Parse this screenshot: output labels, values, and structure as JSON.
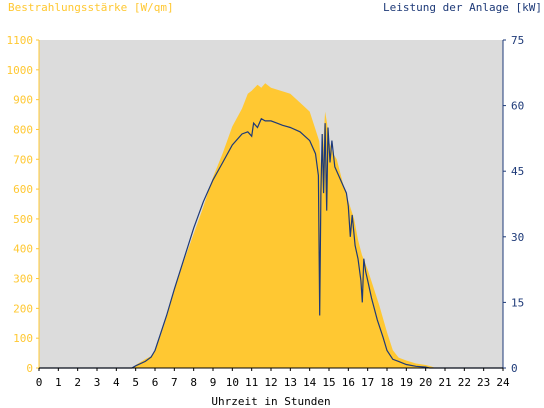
{
  "chart_data": {
    "type": "area",
    "title_left": "Bestrahlungsstärke [W/qm]",
    "title_right": "Leistung der Anlage [kW]",
    "xlabel": "Uhrzeit in Stunden",
    "xlim": [
      0,
      24
    ],
    "x_ticks": [
      "0",
      "1",
      "2",
      "3",
      "4",
      "5",
      "6",
      "7",
      "8",
      "9",
      "10",
      "11",
      "12",
      "13",
      "14",
      "15",
      "16",
      "17",
      "18",
      "19",
      "20",
      "21",
      "22",
      "23",
      "24"
    ],
    "y_left": {
      "lim": [
        0,
        1100
      ],
      "ticks": [
        "0",
        "100",
        "200",
        "300",
        "400",
        "500",
        "600",
        "700",
        "800",
        "900",
        "1000",
        "1100"
      ],
      "color": "#ffc832"
    },
    "y_right": {
      "lim": [
        0,
        75
      ],
      "ticks": [
        "0",
        "15",
        "30",
        "45",
        "60",
        "75"
      ],
      "color": "#1e3a78"
    },
    "plot_background": "#dcdcdc",
    "grid": false,
    "series": [
      {
        "axis": "left",
        "style": "area",
        "color": "#ffc832",
        "x": [
          0,
          4.9,
          5.0,
          5.5,
          5.8,
          6.0,
          6.3,
          6.6,
          7.0,
          7.5,
          8.0,
          8.5,
          9.0,
          9.5,
          10.0,
          10.5,
          10.8,
          11.0,
          11.3,
          11.5,
          11.7,
          12.0,
          12.5,
          13.0,
          13.5,
          14.0,
          14.3,
          14.5,
          14.6,
          14.7,
          14.8,
          14.9,
          15.0,
          15.2,
          15.4,
          15.6,
          15.8,
          16.0,
          16.3,
          16.5,
          16.7,
          17.0,
          17.3,
          17.6,
          18.0,
          18.3,
          18.6,
          19.0,
          19.5,
          20.0,
          20.3,
          20.5,
          24
        ],
        "y": [
          0,
          0,
          10,
          30,
          40,
          60,
          110,
          170,
          260,
          360,
          450,
          540,
          640,
          720,
          810,
          870,
          920,
          930,
          950,
          940,
          955,
          940,
          930,
          920,
          890,
          860,
          800,
          760,
          650,
          750,
          860,
          820,
          760,
          720,
          700,
          650,
          600,
          560,
          500,
          430,
          380,
          330,
          270,
          210,
          120,
          60,
          35,
          25,
          15,
          10,
          5,
          0,
          0
        ]
      },
      {
        "axis": "right",
        "style": "line",
        "color": "#1e3a78",
        "x": [
          0,
          4.8,
          5.0,
          5.5,
          5.8,
          6.0,
          6.3,
          6.6,
          7.0,
          7.5,
          8.0,
          8.5,
          9.0,
          9.5,
          10.0,
          10.5,
          10.8,
          11.0,
          11.1,
          11.3,
          11.5,
          11.7,
          12.0,
          12.3,
          12.6,
          13.0,
          13.5,
          14.0,
          14.3,
          14.45,
          14.52,
          14.58,
          14.65,
          14.72,
          14.8,
          14.88,
          14.95,
          15.05,
          15.15,
          15.3,
          15.5,
          15.7,
          15.9,
          16.0,
          16.1,
          16.2,
          16.35,
          16.5,
          16.65,
          16.72,
          16.8,
          16.9,
          17.0,
          17.2,
          17.5,
          17.8,
          18.0,
          18.3,
          18.6,
          19.0,
          19.5,
          20.0,
          20.2,
          24
        ],
        "y": [
          0,
          0,
          0.5,
          1.5,
          2.5,
          4,
          8,
          12,
          18,
          25,
          32,
          38,
          43,
          47,
          51,
          53.5,
          54,
          53,
          56,
          55,
          57,
          56.5,
          56.5,
          56,
          55.5,
          55,
          54,
          52,
          49,
          44,
          12,
          40,
          53.5,
          40,
          56,
          36,
          55,
          47,
          52,
          46,
          44,
          42,
          40,
          37,
          30,
          35,
          28,
          25,
          20,
          15,
          25,
          22,
          20,
          16,
          11,
          7,
          4,
          2,
          1.5,
          0.8,
          0.4,
          0.2,
          0,
          0
        ]
      }
    ]
  }
}
